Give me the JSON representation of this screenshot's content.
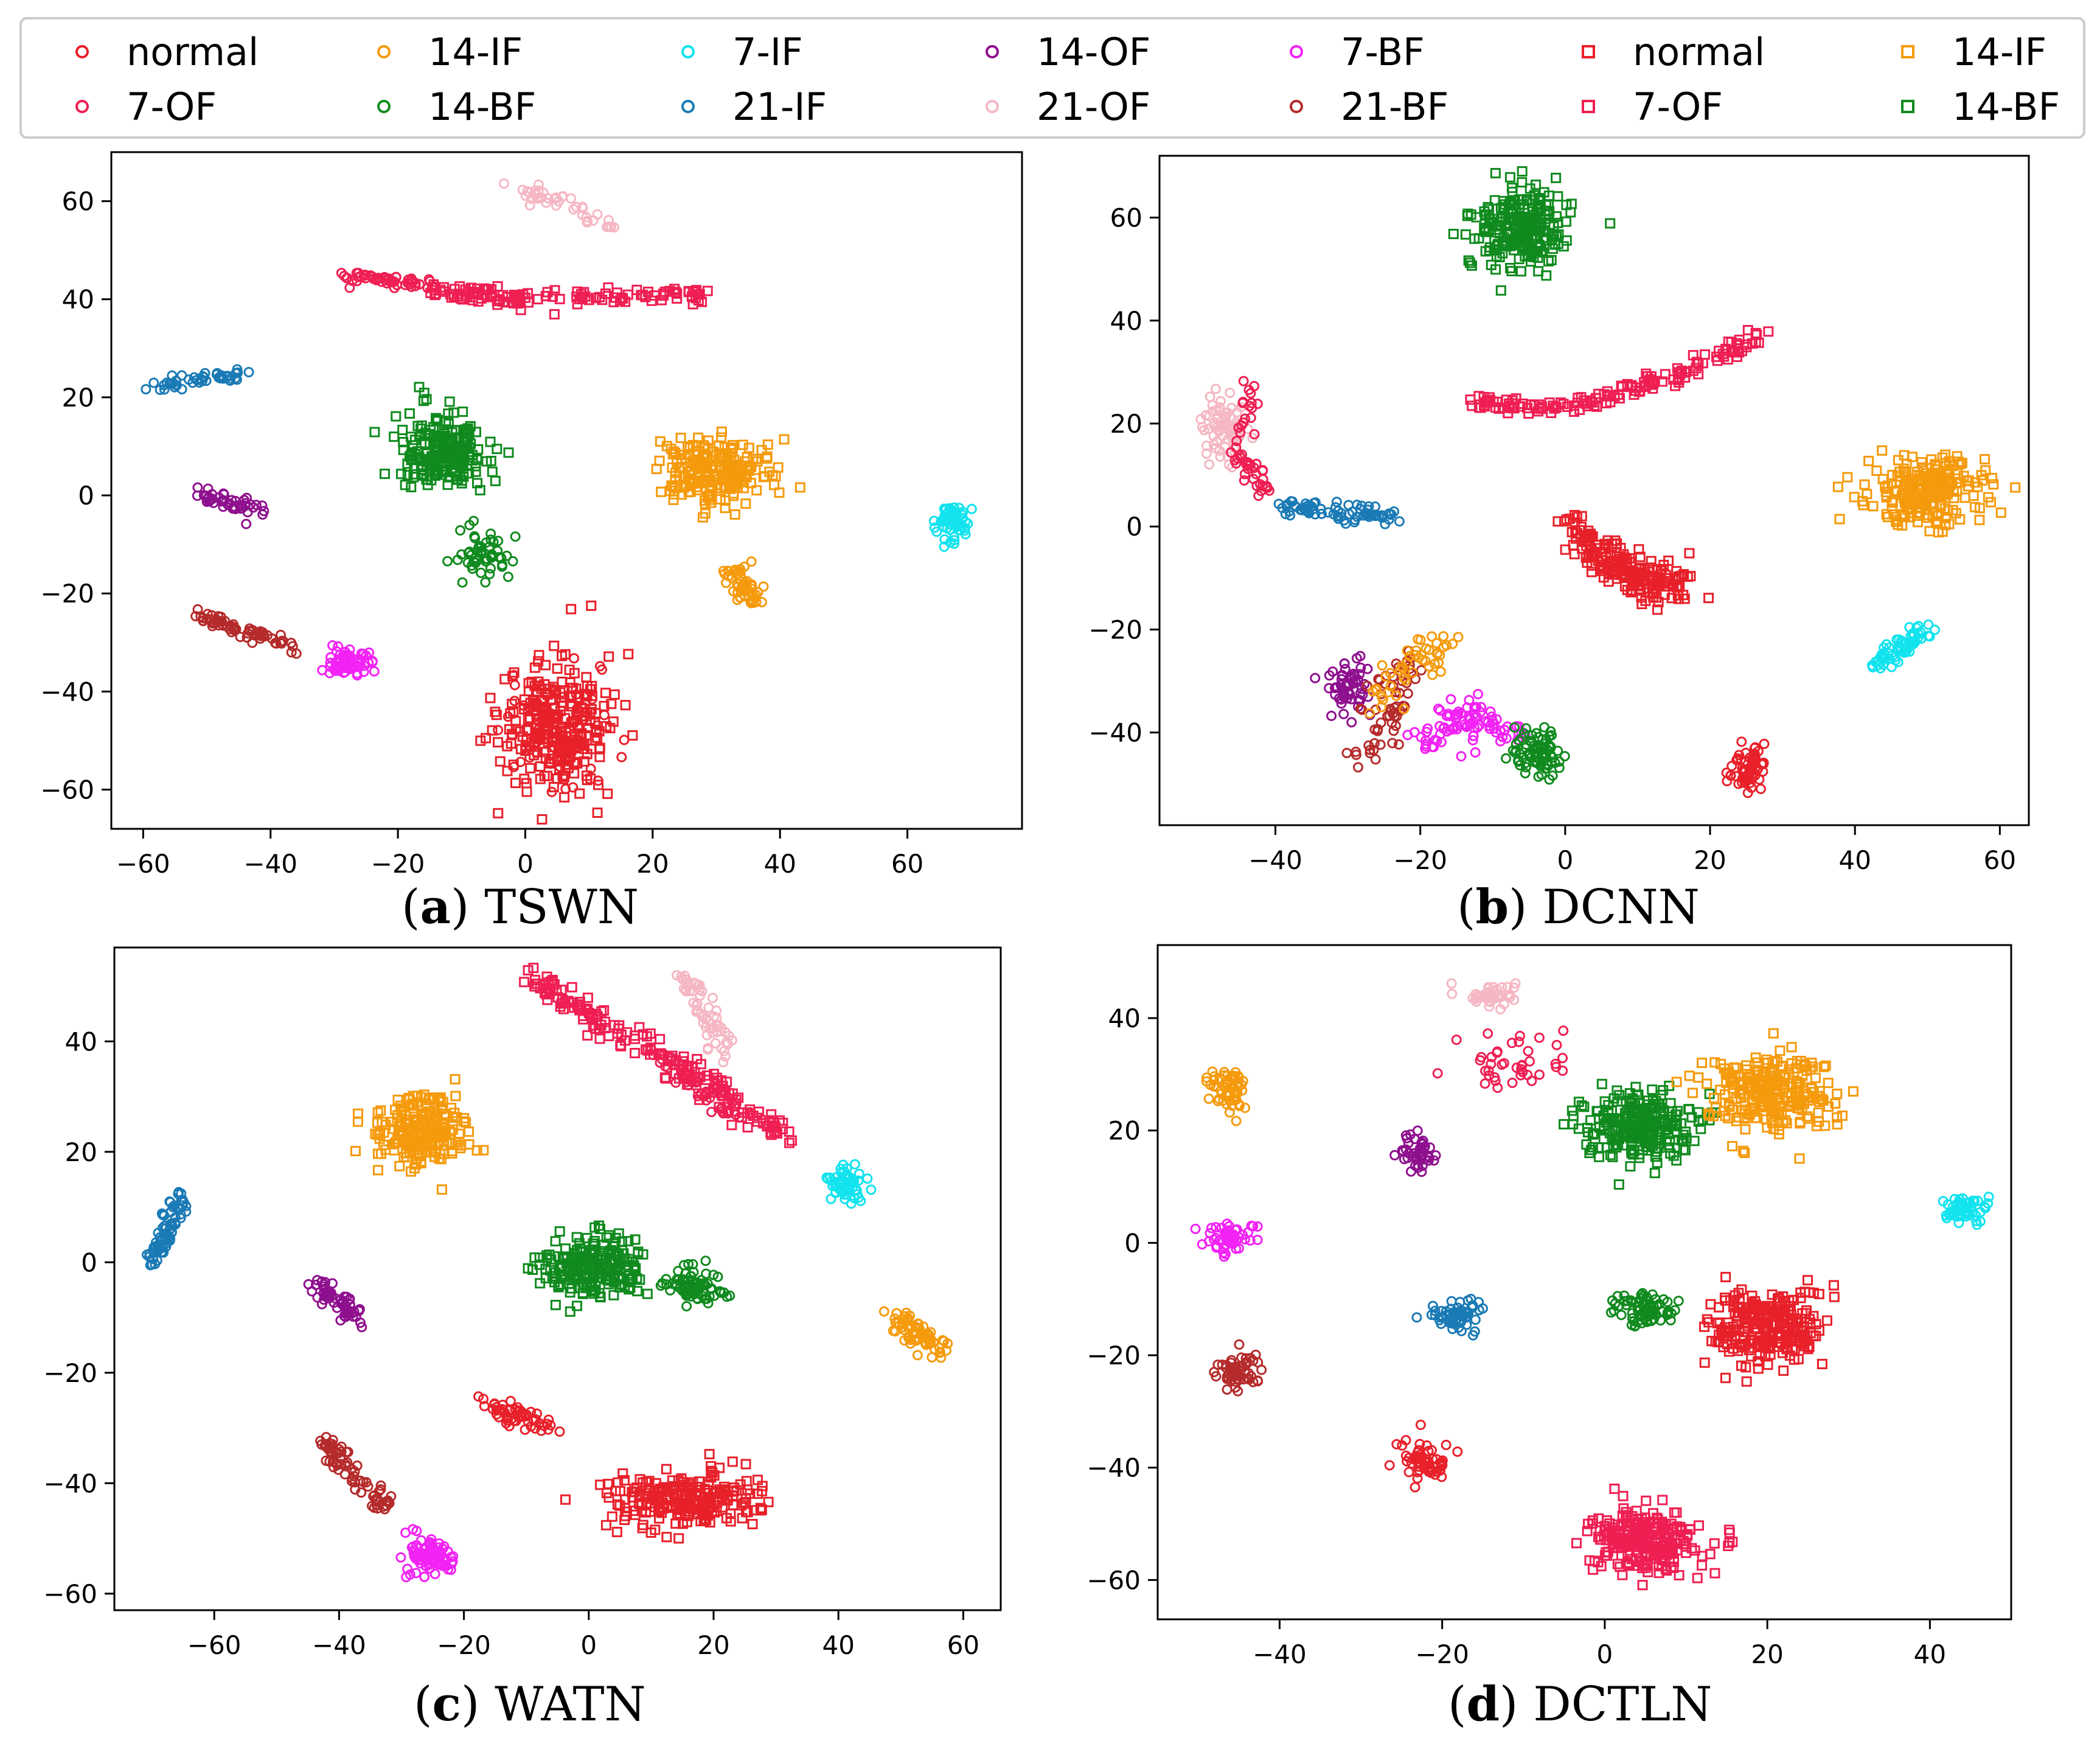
{
  "legend": [
    {
      "label": "normal",
      "color": "#e8202a",
      "marker": "circle"
    },
    {
      "label": "7-OF",
      "color": "#ef1f52",
      "marker": "circle"
    },
    {
      "label": "14-IF",
      "color": "#f59a0c",
      "marker": "circle"
    },
    {
      "label": "14-BF",
      "color": "#108a1e",
      "marker": "circle"
    },
    {
      "label": "7-IF",
      "color": "#12e3ee",
      "marker": "circle"
    },
    {
      "label": "21-IF",
      "color": "#1a7ab5",
      "marker": "circle"
    },
    {
      "label": "14-OF",
      "color": "#8e108e",
      "marker": "circle"
    },
    {
      "label": "21-OF",
      "color": "#f5b7c3",
      "marker": "circle"
    },
    {
      "label": "7-BF",
      "color": "#f222f5",
      "marker": "circle"
    },
    {
      "label": "21-BF",
      "color": "#b52a2a",
      "marker": "circle"
    },
    {
      "label": "normal",
      "color": "#e8202a",
      "marker": "square"
    },
    {
      "label": "7-OF",
      "color": "#ef1f52",
      "marker": "square"
    },
    {
      "label": "14-IF",
      "color": "#f59a0c",
      "marker": "square"
    },
    {
      "label": "14-BF",
      "color": "#108a1e",
      "marker": "square"
    }
  ],
  "chart_data": [
    {
      "type": "scatter",
      "caption_letter": "a",
      "caption_title": " TSWN",
      "xlim": [
        -65,
        78
      ],
      "ylim": [
        -68,
        70
      ],
      "xticks": [
        -60,
        -40,
        -20,
        0,
        20,
        40,
        60
      ],
      "yticks": [
        -60,
        -40,
        -20,
        0,
        20,
        40,
        60
      ],
      "clusters": [
        {
          "cls": "21-OF",
          "marker": "circle",
          "n": 40,
          "path": [
            [
              -1,
              63
            ],
            [
              14,
              55
            ]
          ],
          "spread": 1.6
        },
        {
          "cls": "7-OF",
          "marker": "circle",
          "n": 55,
          "path": [
            [
              -29,
              45
            ],
            [
              -15,
              43
            ]
          ],
          "spread": 1.0
        },
        {
          "cls": "7-OF",
          "marker": "square",
          "n": 130,
          "path": [
            [
              -15,
              42
            ],
            [
              0,
              40
            ],
            [
              28,
              41
            ]
          ],
          "spread": 1.3
        },
        {
          "cls": "21-IF",
          "marker": "circle",
          "n": 45,
          "path": [
            [
              -59,
              22
            ],
            [
              -44,
              25
            ]
          ],
          "spread": 1.2
        },
        {
          "cls": "14-OF",
          "marker": "circle",
          "n": 45,
          "path": [
            [
              -51,
              0
            ],
            [
              -42,
              -3
            ]
          ],
          "spread": 1.4
        },
        {
          "cls": "14-BF",
          "marker": "square",
          "n": 230,
          "cx": -13,
          "cy": 9,
          "rx": 7.5,
          "ry": 7.5
        },
        {
          "cls": "14-BF",
          "marker": "circle",
          "n": 55,
          "cx": -7,
          "cy": -12,
          "rx": 3.5,
          "ry": 4.5
        },
        {
          "cls": "14-IF",
          "marker": "square",
          "n": 220,
          "cx": 30,
          "cy": 5,
          "rx": 8.5,
          "ry": 6.5
        },
        {
          "cls": "14-IF",
          "marker": "circle",
          "n": 55,
          "path": [
            [
              33,
              -14
            ],
            [
              36,
              -22
            ]
          ],
          "spread": 2.0
        },
        {
          "cls": "7-IF",
          "marker": "circle",
          "n": 60,
          "cx": 67,
          "cy": -5,
          "rx": 3,
          "ry": 3.5
        },
        {
          "cls": "21-BF",
          "marker": "circle",
          "n": 65,
          "path": [
            [
              -52,
              -24
            ],
            [
              -36,
              -31
            ]
          ],
          "spread": 1.3
        },
        {
          "cls": "7-BF",
          "marker": "circle",
          "n": 65,
          "cx": -28,
          "cy": -34,
          "rx": 4,
          "ry": 3
        },
        {
          "cls": "normal",
          "marker": "square",
          "n": 260,
          "cx": 5,
          "cy": -48,
          "rx": 9,
          "ry": 13
        },
        {
          "cls": "normal",
          "marker": "circle",
          "n": 70,
          "cx": 5,
          "cy": -48,
          "rx": 8,
          "ry": 11
        }
      ]
    },
    {
      "type": "scatter",
      "caption_letter": "b",
      "caption_title": " DCNN",
      "xlim": [
        -56,
        64
      ],
      "ylim": [
        -58,
        72
      ],
      "xticks": [
        -40,
        -20,
        0,
        20,
        40,
        60
      ],
      "yticks": [
        -40,
        -20,
        0,
        20,
        40,
        60
      ],
      "clusters": [
        {
          "cls": "14-BF",
          "marker": "square",
          "n": 240,
          "cx": -6,
          "cy": 58,
          "rx": 6.5,
          "ry": 8
        },
        {
          "cls": "7-OF",
          "marker": "square",
          "n": 150,
          "path": [
            [
              -13,
              24
            ],
            [
              0,
              23
            ],
            [
              15,
              29
            ],
            [
              27,
              37
            ]
          ],
          "spread": 1.3
        },
        {
          "cls": "21-OF",
          "marker": "circle",
          "n": 70,
          "cx": -47,
          "cy": 19,
          "rx": 3,
          "ry": 7
        },
        {
          "cls": "7-OF",
          "marker": "circle",
          "n": 50,
          "path": [
            [
              -44,
              29
            ],
            [
              -45,
              14
            ],
            [
              -41,
              6
            ]
          ],
          "spread": 1.3
        },
        {
          "cls": "21-IF",
          "marker": "circle",
          "n": 75,
          "path": [
            [
              -39,
              4
            ],
            [
              -24,
              2
            ]
          ],
          "spread": 1.5
        },
        {
          "cls": "normal",
          "marker": "square",
          "n": 210,
          "path": [
            [
              1,
              -1
            ],
            [
              8,
              -8
            ],
            [
              16,
              -13
            ]
          ],
          "spread": 3.2
        },
        {
          "cls": "14-IF",
          "marker": "square",
          "n": 230,
          "cx": 50,
          "cy": 7,
          "rx": 8,
          "ry": 6.5
        },
        {
          "cls": "7-IF",
          "marker": "circle",
          "n": 65,
          "path": [
            [
              43,
              -27
            ],
            [
              50,
              -20
            ]
          ],
          "spread": 1.7
        },
        {
          "cls": "14-OF",
          "marker": "circle",
          "n": 60,
          "cx": -30,
          "cy": -31,
          "rx": 3.5,
          "ry": 5
        },
        {
          "cls": "21-BF",
          "marker": "circle",
          "n": 60,
          "path": [
            [
              -27,
              -45
            ],
            [
              -24,
              -35
            ],
            [
              -22,
              -26
            ]
          ],
          "spread": 2.5
        },
        {
          "cls": "14-IF",
          "marker": "circle",
          "n": 50,
          "path": [
            [
              -26,
              -34
            ],
            [
              -20,
              -26
            ],
            [
              -16,
              -22
            ]
          ],
          "spread": 2.5
        },
        {
          "cls": "7-BF",
          "marker": "circle",
          "n": 90,
          "path": [
            [
              -20,
              -42
            ],
            [
              -14,
              -37
            ],
            [
              -8,
              -40
            ]
          ],
          "spread": 3.2
        },
        {
          "cls": "14-BF",
          "marker": "circle",
          "n": 80,
          "cx": -4,
          "cy": -44,
          "rx": 3.5,
          "ry": 5
        },
        {
          "cls": "normal",
          "marker": "circle",
          "n": 60,
          "cx": 25,
          "cy": -47,
          "rx": 2.5,
          "ry": 4.5
        }
      ]
    },
    {
      "type": "scatter",
      "caption_letter": "c",
      "caption_title": " WATN",
      "xlim": [
        -76,
        66
      ],
      "ylim": [
        -63,
        57
      ],
      "xticks": [
        -60,
        -40,
        -20,
        0,
        20,
        40,
        60
      ],
      "yticks": [
        -60,
        -40,
        -20,
        0,
        20,
        40
      ],
      "clusters": [
        {
          "cls": "7-OF",
          "marker": "square",
          "n": 180,
          "path": [
            [
              -10,
              52
            ],
            [
              5,
              42
            ],
            [
              20,
              32
            ],
            [
              32,
              22
            ]
          ],
          "spread": 1.8
        },
        {
          "cls": "7-OF",
          "marker": "circle",
          "n": 45,
          "path": [
            [
              11,
              38
            ],
            [
              23,
              26
            ]
          ],
          "spread": 1.3
        },
        {
          "cls": "21-OF",
          "marker": "circle",
          "n": 60,
          "path": [
            [
              15,
              52
            ],
            [
              23,
              38
            ]
          ],
          "spread": 2.2
        },
        {
          "cls": "14-IF",
          "marker": "square",
          "n": 220,
          "cx": -27,
          "cy": 24,
          "rx": 7.5,
          "ry": 6
        },
        {
          "cls": "21-IF",
          "marker": "circle",
          "n": 75,
          "path": [
            [
              -70,
              0
            ],
            [
              -65,
              12
            ]
          ],
          "spread": 1.3
        },
        {
          "cls": "7-IF",
          "marker": "circle",
          "n": 55,
          "cx": 41,
          "cy": 14,
          "rx": 3.5,
          "ry": 3
        },
        {
          "cls": "14-BF",
          "marker": "square",
          "n": 220,
          "cx": 1,
          "cy": -1,
          "rx": 8,
          "ry": 5.5
        },
        {
          "cls": "14-BF",
          "marker": "circle",
          "n": 75,
          "cx": 17,
          "cy": -4,
          "rx": 5.5,
          "ry": 3.5
        },
        {
          "cls": "14-OF",
          "marker": "circle",
          "n": 60,
          "path": [
            [
              -43,
              -4
            ],
            [
              -37,
              -10
            ]
          ],
          "spread": 1.6
        },
        {
          "cls": "14-IF",
          "marker": "circle",
          "n": 70,
          "path": [
            [
              49,
              -10
            ],
            [
              57,
              -16
            ]
          ],
          "spread": 1.7
        },
        {
          "cls": "normal",
          "marker": "circle",
          "n": 55,
          "path": [
            [
              -16,
              -26
            ],
            [
              -6,
              -30
            ]
          ],
          "spread": 1.5
        },
        {
          "cls": "21-BF",
          "marker": "circle",
          "n": 70,
          "path": [
            [
              -42,
              -32
            ],
            [
              -38,
              -39
            ],
            [
              -31,
              -45
            ]
          ],
          "spread": 1.5
        },
        {
          "cls": "normal",
          "marker": "square",
          "n": 240,
          "cx": 15,
          "cy": -43,
          "rx": 12,
          "ry": 5
        },
        {
          "cls": "7-BF",
          "marker": "circle",
          "n": 80,
          "cx": -25,
          "cy": -53,
          "rx": 3.5,
          "ry": 4
        }
      ]
    },
    {
      "type": "scatter",
      "caption_letter": "d",
      "caption_title": " DCTLN",
      "xlim": [
        -55,
        50
      ],
      "ylim": [
        -67,
        53
      ],
      "xticks": [
        -40,
        -20,
        0,
        20,
        40
      ],
      "yticks": [
        -60,
        -40,
        -20,
        0,
        20,
        40
      ],
      "clusters": [
        {
          "cls": "21-OF",
          "marker": "circle",
          "n": 45,
          "cx": -14,
          "cy": 44,
          "rx": 3,
          "ry": 2
        },
        {
          "cls": "7-OF",
          "marker": "circle",
          "n": 40,
          "cx": -11,
          "cy": 32,
          "rx": 7,
          "ry": 7
        },
        {
          "cls": "14-IF",
          "marker": "circle",
          "n": 60,
          "cx": -46,
          "cy": 27,
          "rx": 2.5,
          "ry": 4.5
        },
        {
          "cls": "14-OF",
          "marker": "circle",
          "n": 45,
          "cx": -23,
          "cy": 16,
          "rx": 2,
          "ry": 3.5
        },
        {
          "cls": "14-BF",
          "marker": "square",
          "n": 260,
          "cx": 4,
          "cy": 21,
          "rx": 6.5,
          "ry": 6
        },
        {
          "cls": "14-IF",
          "marker": "square",
          "n": 260,
          "cx": 20,
          "cy": 27,
          "rx": 8,
          "ry": 7
        },
        {
          "cls": "7-BF",
          "marker": "circle",
          "n": 55,
          "cx": -46,
          "cy": 1,
          "rx": 3.5,
          "ry": 2.5
        },
        {
          "cls": "7-IF",
          "marker": "circle",
          "n": 55,
          "cx": 44,
          "cy": 6,
          "rx": 3,
          "ry": 2.5
        },
        {
          "cls": "21-IF",
          "marker": "circle",
          "n": 60,
          "cx": -18,
          "cy": -13,
          "rx": 3.5,
          "ry": 3
        },
        {
          "cls": "14-BF",
          "marker": "circle",
          "n": 70,
          "cx": 5,
          "cy": -12,
          "rx": 4,
          "ry": 3
        },
        {
          "cls": "normal",
          "marker": "square",
          "n": 260,
          "cx": 20,
          "cy": -15,
          "rx": 7,
          "ry": 7
        },
        {
          "cls": "21-BF",
          "marker": "circle",
          "n": 55,
          "cx": -45,
          "cy": -23,
          "rx": 3,
          "ry": 3.5
        },
        {
          "cls": "normal",
          "marker": "circle",
          "n": 55,
          "cx": -22,
          "cy": -39,
          "rx": 3,
          "ry": 3.5
        },
        {
          "cls": "7-OF",
          "marker": "square",
          "n": 260,
          "cx": 5,
          "cy": -53,
          "rx": 6.5,
          "ry": 5.5
        }
      ]
    }
  ]
}
